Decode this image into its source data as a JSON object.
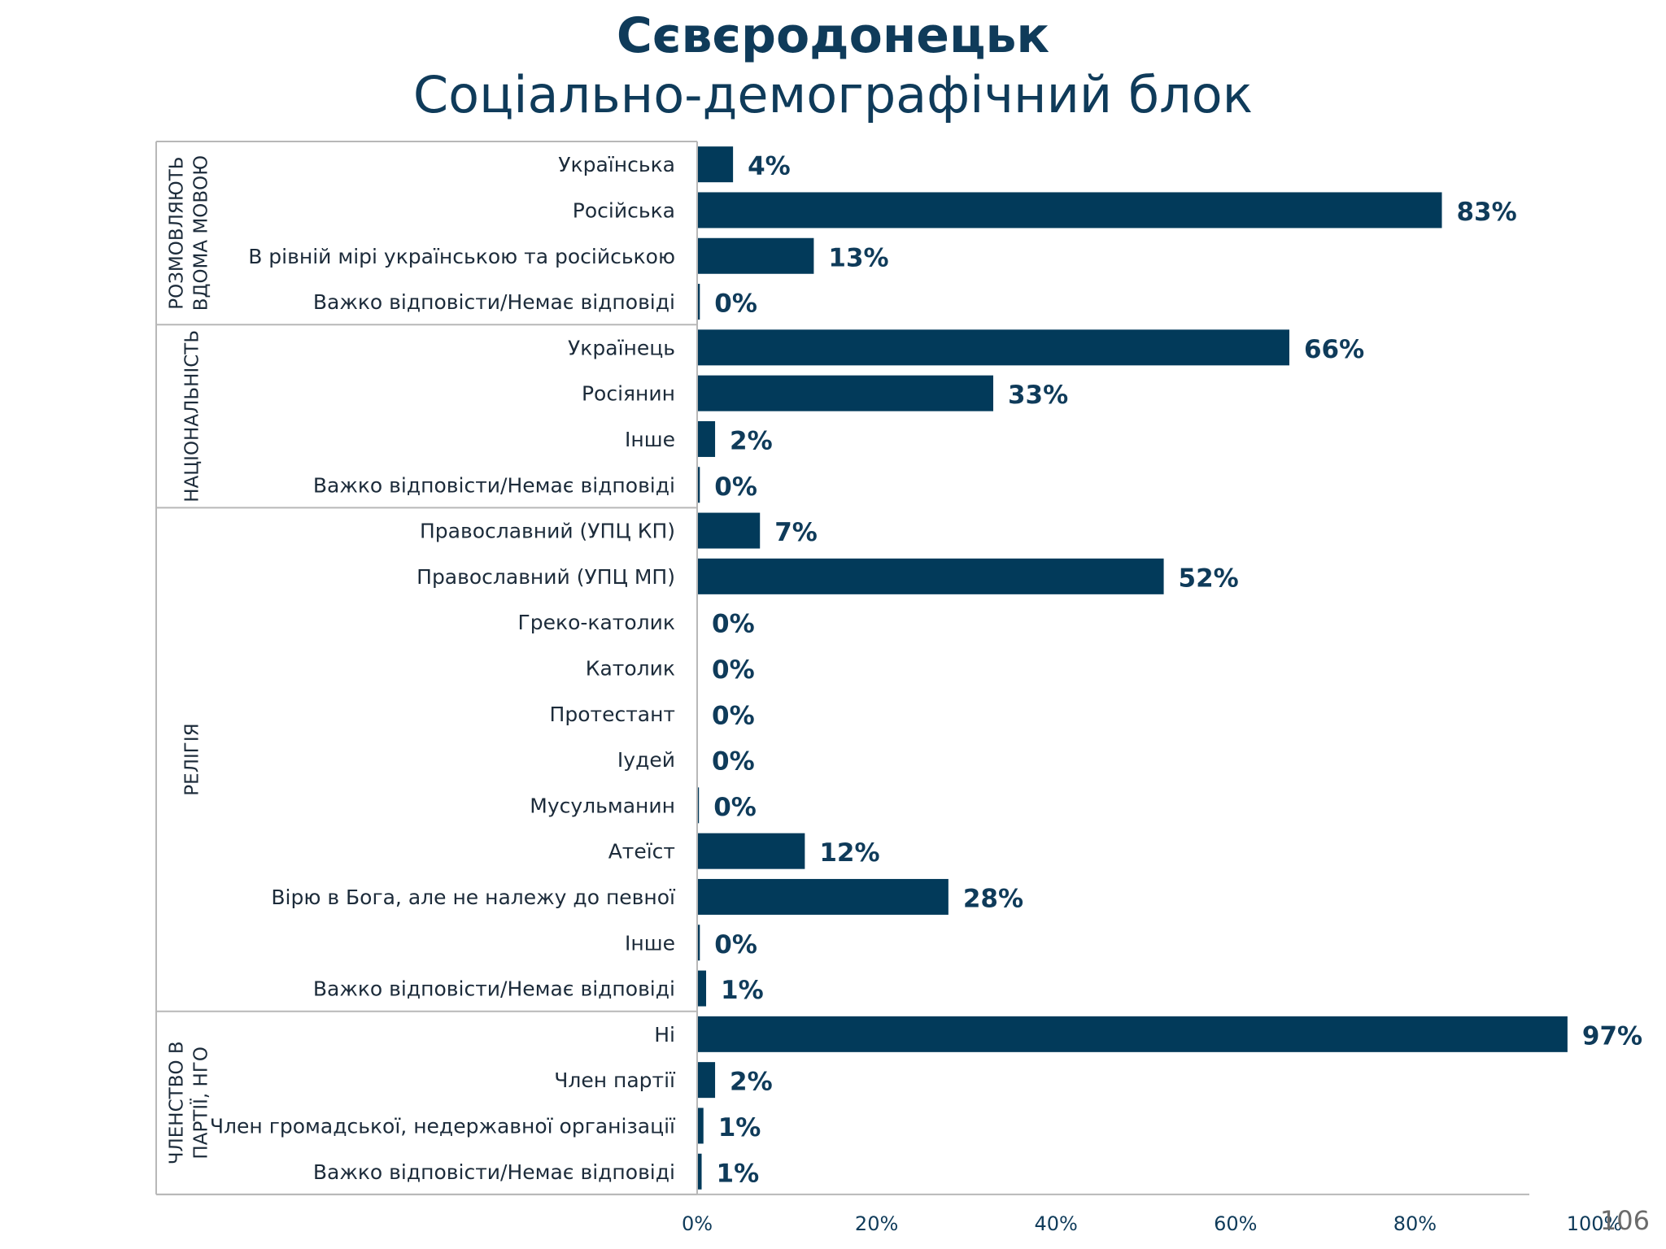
{
  "title": "Сєвєродонецьк",
  "subtitle": "Соціально-демографічний блок",
  "page_number": "106",
  "colors": {
    "bar": "#023a5a",
    "text": "#0f3b5a",
    "line": "#b8b8b8"
  },
  "chart_data": {
    "type": "bar",
    "orientation": "horizontal",
    "xlim": [
      0,
      100
    ],
    "x_ticks": [
      "0%",
      "20%",
      "40%",
      "60%",
      "80%",
      "100%"
    ],
    "groups": [
      {
        "label_lines": [
          "РОЗМОВЛЯЮТЬ",
          "ВДОМА МОВОЮ"
        ],
        "items": [
          {
            "label": "Українська",
            "value": 4,
            "value_label": "4%"
          },
          {
            "label": "Російська",
            "value": 83,
            "value_label": "83%"
          },
          {
            "label": "В рівній мірі українською та російською",
            "value": 13,
            "value_label": "13%"
          },
          {
            "label": "Важко відповісти/Немає відповіді",
            "value": 0.3,
            "value_label": "0%"
          }
        ]
      },
      {
        "label_lines": [
          "НАЦІОНАЛЬНІСТЬ"
        ],
        "items": [
          {
            "label": "Українець",
            "value": 66,
            "value_label": "66%"
          },
          {
            "label": "Росіянин",
            "value": 33,
            "value_label": "33%"
          },
          {
            "label": "Інше",
            "value": 2,
            "value_label": "2%"
          },
          {
            "label": "Важко відповісти/Немає відповіді",
            "value": 0.3,
            "value_label": "0%"
          }
        ]
      },
      {
        "label_lines": [
          "РЕЛІГІЯ"
        ],
        "items": [
          {
            "label": "Православний (УПЦ КП)",
            "value": 7,
            "value_label": "7%"
          },
          {
            "label": "Православний (УПЦ МП)",
            "value": 52,
            "value_label": "52%"
          },
          {
            "label": "Греко-католик",
            "value": 0,
            "value_label": "0%"
          },
          {
            "label": "Католик",
            "value": 0,
            "value_label": "0%"
          },
          {
            "label": "Протестант",
            "value": 0,
            "value_label": "0%"
          },
          {
            "label": "Іудей",
            "value": 0,
            "value_label": "0%"
          },
          {
            "label": "Мусульманин",
            "value": 0.2,
            "value_label": "0%"
          },
          {
            "label": "Атеїст",
            "value": 12,
            "value_label": "12%"
          },
          {
            "label": "Вірю в Бога, але не належу до певної",
            "value": 28,
            "value_label": "28%"
          },
          {
            "label": "Інше",
            "value": 0.3,
            "value_label": "0%"
          },
          {
            "label": "Важко відповісти/Немає відповіді",
            "value": 1,
            "value_label": "1%"
          }
        ]
      },
      {
        "label_lines": [
          "ЧЛЕНСТВО В",
          "ПАРТІЇ, НГО"
        ],
        "items": [
          {
            "label": "Ні",
            "value": 97,
            "value_label": "97%"
          },
          {
            "label": "Член партії",
            "value": 2,
            "value_label": "2%"
          },
          {
            "label": "Член громадської, недержавної організації",
            "value": 0.7,
            "value_label": "1%"
          },
          {
            "label": "Важко відповісти/Немає відповіді",
            "value": 0.5,
            "value_label": "1%"
          }
        ]
      }
    ]
  }
}
